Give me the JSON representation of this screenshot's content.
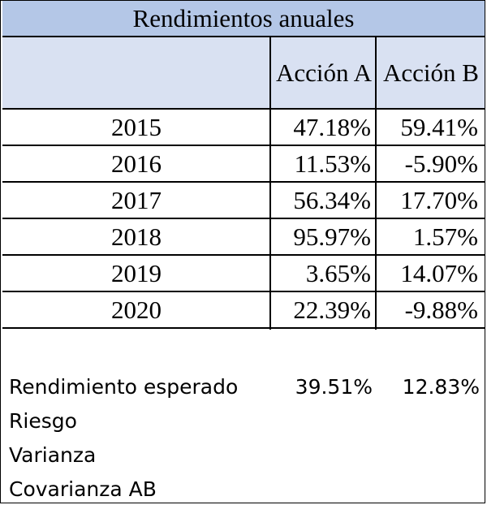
{
  "table": {
    "title": "Rendimientos anuales",
    "headers": [
      "",
      "Acción A",
      "Acción B"
    ],
    "rows": [
      {
        "year": "2015",
        "a": "47.18%",
        "b": "59.41%"
      },
      {
        "year": "2016",
        "a": "11.53%",
        "b": "-5.90%"
      },
      {
        "year": "2017",
        "a": "56.34%",
        "b": "17.70%"
      },
      {
        "year": "2018",
        "a": "95.97%",
        "b": "1.57%"
      },
      {
        "year": "2019",
        "a": "3.65%",
        "b": "14.07%"
      },
      {
        "year": "2020",
        "a": "22.39%",
        "b": "-9.88%"
      }
    ]
  },
  "stats": {
    "expected_return_label": "Rendimiento esperado",
    "expected_return_a": "39.51%",
    "expected_return_b": "12.83%",
    "risk_label": "Riesgo",
    "variance_label": "Varianza",
    "covariance_label": "Covarianza AB"
  },
  "colors": {
    "title_fill": "#b4c7e7",
    "header_fill": "#d9e1f2"
  }
}
